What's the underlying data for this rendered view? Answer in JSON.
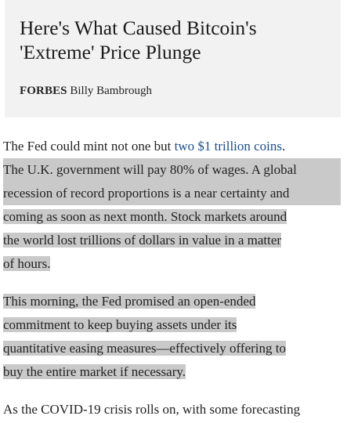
{
  "card": {
    "title_line1": "Here's What Caused Bitcoin's",
    "title_line2": "'Extreme' Price Plunge",
    "source": "FORBES",
    "author": "Billy Bambrough"
  },
  "article": {
    "p1_line1_text": "The Fed could mint not one but ",
    "p1_line1_link": "two $1 trillion coins",
    "p1_line1_end": ".",
    "p1_lines": [
      "The U.K. government will pay 80% of wages. A global",
      "recession of record proportions is a near certainty and",
      "coming as soon as next month. Stock markets around",
      "the world lost trillions of dollars in value in a matter",
      "of hours."
    ],
    "p2_lines": [
      "This morning, the Fed promised an open-ended",
      "commitment to keep buying assets under its",
      "quantitative easing measures—effectively offering to",
      "buy the entire market if necessary."
    ],
    "p3_line1": "As the COVID-19 crisis rolls on, with some forecasting"
  },
  "colors": {
    "highlight": "#c9c9c9",
    "link": "#1a4f8b",
    "card_background": "#f2f2f2"
  }
}
